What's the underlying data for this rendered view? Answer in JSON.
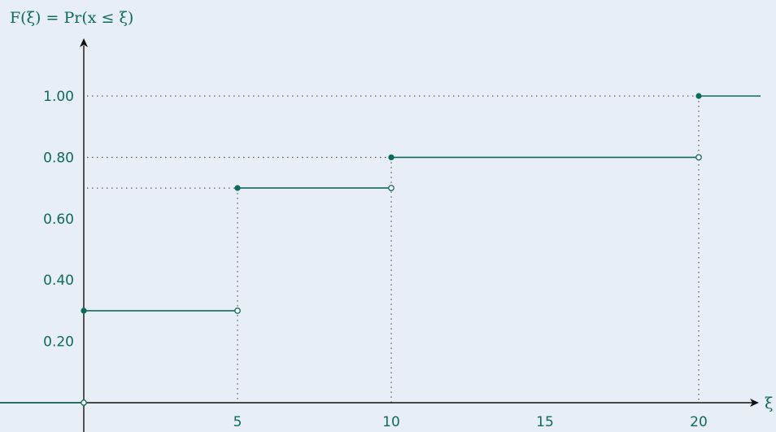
{
  "chart_data": {
    "type": "line",
    "subtype": "step-cdf",
    "ylabel": "F(ξ) = Pr(x ≤ ξ)",
    "xlabel": "ξ",
    "x_ticks": [
      5,
      10,
      15,
      20
    ],
    "x_tick_labels": [
      "5",
      "10",
      "15",
      "20"
    ],
    "y_ticks": [
      0.2,
      0.4,
      0.6,
      0.8,
      1.0
    ],
    "y_tick_labels": [
      "0.20",
      "0.40",
      "0.60",
      "0.80",
      "1.00"
    ],
    "xlim": [
      -2,
      22
    ],
    "ylim": [
      0,
      1.1
    ],
    "grid": false,
    "segments": [
      {
        "x_start": -2,
        "x_end": 0,
        "y": 0
      },
      {
        "x_start": 0,
        "x_end": 5,
        "y": 0.3
      },
      {
        "x_start": 5,
        "x_end": 10,
        "y": 0.7
      },
      {
        "x_start": 10,
        "x_end": 20,
        "y": 0.8
      },
      {
        "x_start": 20,
        "x_end": 22,
        "y": 1.0
      }
    ],
    "filled_points": [
      {
        "x": 0,
        "y": 0.3
      },
      {
        "x": 5,
        "y": 0.7
      },
      {
        "x": 10,
        "y": 0.8
      },
      {
        "x": 20,
        "y": 1.0
      }
    ],
    "open_points": [
      {
        "x": 0,
        "y": 0
      },
      {
        "x": 5,
        "y": 0.3
      },
      {
        "x": 10,
        "y": 0.7
      },
      {
        "x": 20,
        "y": 0.8
      }
    ],
    "guide_lines": [
      {
        "x": 5,
        "y": 0.7
      },
      {
        "x": 10,
        "y": 0.8
      },
      {
        "x": 20,
        "y": 1.0
      }
    ],
    "colors": {
      "line": "#0e6a5a",
      "axis": "#111111",
      "background": "#e8eef6"
    }
  }
}
